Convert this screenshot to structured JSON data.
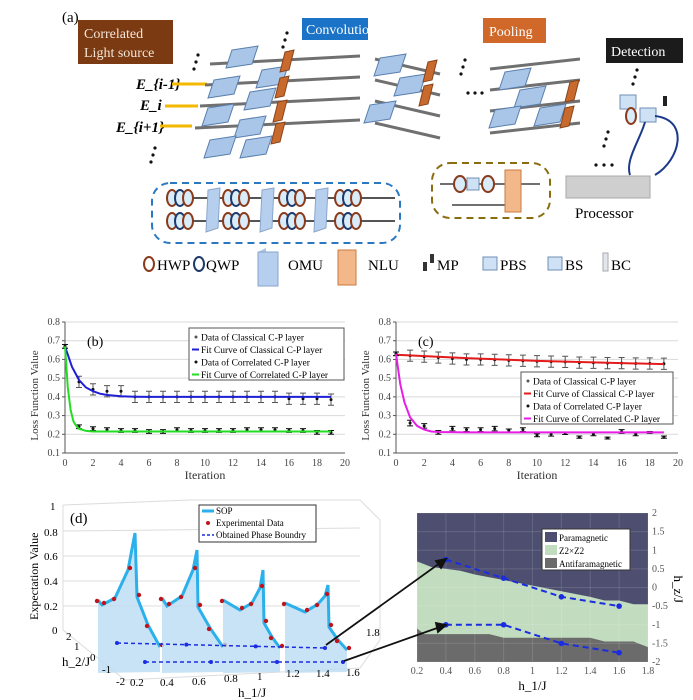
{
  "panel_a": {
    "label": "(a)",
    "source_label_line1": "Correlated",
    "source_label_line2": "Light source",
    "convolution_label": "Convolution",
    "pooling_label": "Pooling",
    "detection_label": "Detection",
    "processor_label": "Processor",
    "field_labels": [
      "E_{i-1}",
      "E_i",
      "E_{i+1}"
    ],
    "ellipsis": "…",
    "colors": {
      "source": "#7b3a12",
      "convolution": "#1a73c7",
      "pooling": "#d0682a",
      "detection": "#1b1b1b",
      "omu": "#a9c6e8",
      "nlu": "#c86a2e"
    },
    "legend": [
      "HWP",
      "QWP",
      "OMU",
      "NLU",
      "MP",
      "PBS",
      "BS",
      "BC"
    ]
  },
  "chart_data": [
    {
      "panel": "(b)",
      "type": "line",
      "xlabel": "Iteration",
      "ylabel": "Loss Function Value",
      "xlim": [
        0,
        20
      ],
      "ylim": [
        0.1,
        0.8
      ],
      "xticks": [
        "0",
        "2",
        "4",
        "6",
        "8",
        "10",
        "12",
        "14",
        "16",
        "18",
        "20"
      ],
      "yticks": [
        "0.1",
        "0.2",
        "0.3",
        "0.4",
        "0.5",
        "0.6",
        "0.7",
        "0.8"
      ],
      "grid": "horizontal",
      "legend_position": "top-right",
      "legend": [
        "Data of Classical C-P layer",
        "Fit Curve of Classical C-P layer",
        "Data of Correlated C-P layer",
        "Fit Curve of Correlated C-P layer"
      ],
      "series": [
        {
          "name": "Data of Classical C-P layer",
          "kind": "errorbar",
          "color": "#555555",
          "x": [
            0,
            1,
            2,
            3,
            4,
            5,
            6,
            7,
            8,
            9,
            10,
            11,
            12,
            13,
            14,
            15,
            16,
            17,
            18,
            19
          ],
          "y": [
            0.67,
            0.48,
            0.44,
            0.43,
            0.43,
            0.4,
            0.4,
            0.4,
            0.4,
            0.4,
            0.4,
            0.4,
            0.4,
            0.4,
            0.4,
            0.4,
            0.39,
            0.39,
            0.39,
            0.385
          ],
          "err": [
            0.01,
            0.03,
            0.03,
            0.03,
            0.03,
            0.03,
            0.03,
            0.03,
            0.03,
            0.03,
            0.03,
            0.03,
            0.03,
            0.03,
            0.03,
            0.03,
            0.03,
            0.03,
            0.03,
            0.03
          ]
        },
        {
          "name": "Fit Curve of Classical C-P layer",
          "kind": "line",
          "color": "#1f1fd6",
          "x": [
            0,
            0.5,
            1,
            1.5,
            2,
            2.5,
            3,
            4,
            5,
            6,
            8,
            10,
            12,
            14,
            16,
            18,
            19
          ],
          "y": [
            0.67,
            0.56,
            0.49,
            0.45,
            0.43,
            0.417,
            0.41,
            0.403,
            0.401,
            0.4,
            0.4,
            0.4,
            0.4,
            0.4,
            0.4,
            0.4,
            0.4
          ]
        },
        {
          "name": "Data of Correlated C-P layer",
          "kind": "errorbar",
          "color": "#111111",
          "x": [
            0,
            1,
            2,
            3,
            4,
            5,
            6,
            7,
            8,
            9,
            10,
            11,
            12,
            13,
            14,
            15,
            16,
            17,
            18,
            19
          ],
          "y": [
            0.67,
            0.24,
            0.23,
            0.225,
            0.22,
            0.22,
            0.215,
            0.215,
            0.225,
            0.22,
            0.22,
            0.22,
            0.22,
            0.225,
            0.225,
            0.225,
            0.22,
            0.22,
            0.21,
            0.21
          ],
          "err": [
            0.01,
            0.01,
            0.01,
            0.01,
            0.01,
            0.01,
            0.01,
            0.01,
            0.01,
            0.01,
            0.01,
            0.01,
            0.01,
            0.01,
            0.01,
            0.01,
            0.01,
            0.01,
            0.01,
            0.01
          ]
        },
        {
          "name": "Fit Curve of Correlated C-P layer",
          "kind": "line",
          "color": "#22dd22",
          "x": [
            0,
            0.2,
            0.4,
            0.6,
            0.8,
            1,
            1.5,
            2,
            3,
            5,
            10,
            15,
            19
          ],
          "y": [
            0.67,
            0.45,
            0.33,
            0.27,
            0.245,
            0.23,
            0.218,
            0.215,
            0.215,
            0.215,
            0.215,
            0.215,
            0.215
          ]
        }
      ]
    },
    {
      "panel": "(c)",
      "type": "line",
      "xlabel": "Iteration",
      "ylabel": "Loss Function Value",
      "xlim": [
        0,
        20
      ],
      "ylim": [
        0.1,
        0.8
      ],
      "xticks": [
        "0",
        "2",
        "4",
        "6",
        "8",
        "10",
        "12",
        "14",
        "16",
        "18",
        "20"
      ],
      "yticks": [
        "0.1",
        "0.2",
        "0.3",
        "0.4",
        "0.5",
        "0.6",
        "0.7",
        "0.8"
      ],
      "grid": "horizontal",
      "legend_position": "center-right",
      "legend": [
        "Data of Classical C-P layer",
        "Fit Curve of Classical C-P layer",
        "Data of Correlated C-P layer",
        "Fit Curve of Correlated C-P layer"
      ],
      "series": [
        {
          "name": "Data of Classical C-P layer",
          "kind": "errorbar",
          "color": "#555555",
          "x": [
            0,
            1,
            2,
            3,
            4,
            5,
            6,
            7,
            8,
            9,
            10,
            11,
            12,
            13,
            14,
            15,
            16,
            17,
            18,
            19
          ],
          "y": [
            0.63,
            0.62,
            0.615,
            0.61,
            0.605,
            0.6,
            0.6,
            0.598,
            0.595,
            0.593,
            0.59,
            0.588,
            0.587,
            0.583,
            0.582,
            0.58,
            0.58,
            0.578,
            0.578,
            0.577
          ],
          "err": [
            0.01,
            0.03,
            0.03,
            0.03,
            0.03,
            0.03,
            0.03,
            0.03,
            0.03,
            0.03,
            0.03,
            0.03,
            0.03,
            0.03,
            0.03,
            0.03,
            0.03,
            0.03,
            0.03,
            0.03
          ]
        },
        {
          "name": "Fit Curve of Classical C-P layer",
          "kind": "line",
          "color": "#e31b1b",
          "x": [
            0,
            5,
            10,
            15,
            19
          ],
          "y": [
            0.625,
            0.607,
            0.592,
            0.582,
            0.575
          ]
        },
        {
          "name": "Data of Correlated C-P layer",
          "kind": "errorbar",
          "color": "#111111",
          "x": [
            0,
            1,
            2,
            3,
            4,
            5,
            6,
            7,
            8,
            9,
            10,
            11,
            12,
            13,
            14,
            15,
            16,
            17,
            18,
            19
          ],
          "y": [
            0.63,
            0.26,
            0.245,
            0.21,
            0.23,
            0.225,
            0.225,
            0.23,
            0.22,
            0.225,
            0.195,
            0.2,
            0.205,
            0.185,
            0.2,
            0.18,
            0.215,
            0.2,
            0.21,
            0.185
          ],
          "err": [
            0.01,
            0.015,
            0.012,
            0.01,
            0.012,
            0.01,
            0.01,
            0.012,
            0.008,
            0.01,
            0.008,
            0.01,
            0.006,
            0.006,
            0.008,
            0.005,
            0.01,
            0.008,
            0.005,
            0.006
          ]
        },
        {
          "name": "Fit Curve of Correlated C-P layer",
          "kind": "line",
          "color": "#e61ee6",
          "x": [
            0,
            0.3,
            0.6,
            1,
            1.5,
            2,
            2.5,
            3,
            5,
            10,
            15,
            19
          ],
          "y": [
            0.63,
            0.47,
            0.37,
            0.29,
            0.245,
            0.225,
            0.215,
            0.212,
            0.21,
            0.21,
            0.21,
            0.21
          ]
        }
      ]
    },
    {
      "panel": "(d)",
      "type": "line",
      "zlabel": "Expectation Value",
      "xlabel": "h_1/J",
      "ylabel": "h_2/J",
      "zticks": [
        "0",
        "0.2",
        "0.4",
        "0.6",
        "0.8",
        "1"
      ],
      "xticks": [
        "0.2",
        "0.4",
        "0.6",
        "0.8",
        "1",
        "1.2",
        "1.4",
        "1.6",
        "1.8"
      ],
      "yticks": [
        "2",
        "1",
        "0",
        "-1",
        "-2"
      ],
      "legend_position": "top-center",
      "legend": [
        "SOP",
        "Experimental Data",
        "Obtained Phase Boundry"
      ],
      "colors": {
        "sop": "#2ab0ea",
        "data": "#c0141c",
        "boundary": "#1a2de0",
        "fill": "#bcdcf4"
      }
    },
    {
      "panel": "phase-diagram",
      "type": "area",
      "xlabel": "h_1/J",
      "ylabel": "h_z/J",
      "xlim": [
        0.2,
        1.8
      ],
      "ylim": [
        -2,
        2
      ],
      "xticks": [
        "0.2",
        "0.4",
        "0.6",
        "0.8",
        "1",
        "1.2",
        "1.4",
        "1.6",
        "1.8"
      ],
      "yticks": [
        "2",
        "1.5",
        "1",
        "0.5",
        "0",
        "-0.5",
        "-1",
        "-1.5",
        "-2"
      ],
      "legend_position": "top-right",
      "regions": [
        {
          "name": "Paramagnetic",
          "color": "#4e4f70"
        },
        {
          "name": "Z2×Z2",
          "color": "#c2dcbf"
        },
        {
          "name": "Antifaramagnetic",
          "color": "#6b6b6b"
        }
      ],
      "boundary_para": {
        "x": [
          0.2,
          0.3,
          0.4,
          0.5,
          0.6,
          0.8,
          1.0,
          1.2,
          1.4,
          1.5,
          1.6,
          1.7,
          1.8
        ],
        "y": [
          0.7,
          0.55,
          0.5,
          0.45,
          0.35,
          0.2,
          0.05,
          -0.1,
          -0.25,
          -0.35,
          -0.35,
          -0.45,
          -0.45
        ]
      },
      "boundary_anti": {
        "x": [
          0.2,
          0.25,
          0.7,
          0.8,
          1.4,
          1.5,
          1.7,
          1.8
        ],
        "y": [
          -1.1,
          -1.25,
          -1.25,
          -1.35,
          -1.35,
          -1.45,
          -1.45,
          -1.6
        ]
      },
      "series": [
        {
          "kind": "dashed-line",
          "color": "#1a2de0",
          "x": [
            0.4,
            0.8,
            1.2,
            1.6
          ],
          "y": [
            0.75,
            0.25,
            -0.25,
            -0.5
          ]
        },
        {
          "kind": "dashed-line",
          "color": "#1a2de0",
          "x": [
            0.4,
            0.8,
            1.2,
            1.6
          ],
          "y": [
            -1,
            -1,
            -1.5,
            -1.75
          ]
        }
      ]
    }
  ]
}
